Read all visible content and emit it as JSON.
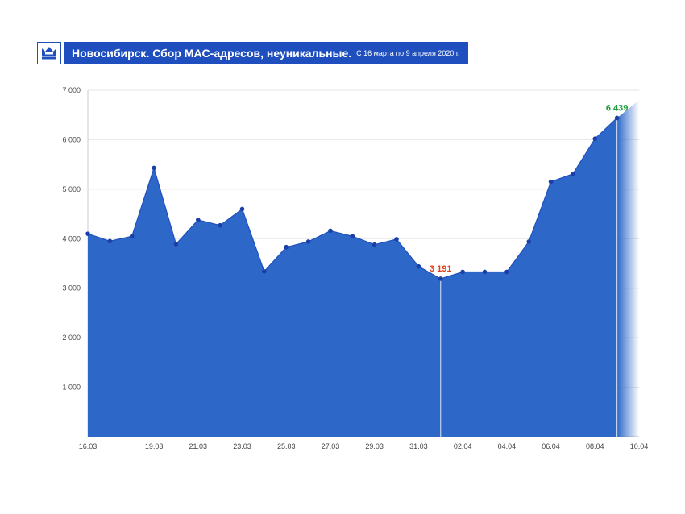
{
  "header": {
    "title": "Новосибирск. Сбор MAC-адресов, неуникальные.",
    "subtitle": "С 16 марта по 9 апреля 2020 г.",
    "logo_icon": "crown-icon"
  },
  "colors": {
    "fill": "#2d68c8",
    "line": "#1f4fbf",
    "point": "#1a3fa8",
    "grid": "#e6e6e6",
    "header": "#1f4fbf",
    "min_label": "#e0401a",
    "max_label": "#1f9a3a"
  },
  "chart_data": {
    "type": "area",
    "x": [
      "16.03",
      "17.03",
      "18.03",
      "19.03",
      "20.03",
      "21.03",
      "22.03",
      "23.03",
      "24.03",
      "25.03",
      "26.03",
      "27.03",
      "28.03",
      "29.03",
      "30.03",
      "31.03",
      "01.04",
      "02.04",
      "03.04",
      "04.04",
      "05.04",
      "06.04",
      "07.04",
      "08.04",
      "09.04",
      "10.04"
    ],
    "series": [
      {
        "values": [
          4100,
          3950,
          4050,
          5430,
          3890,
          4380,
          4270,
          4600,
          3340,
          3830,
          3940,
          4160,
          4050,
          3880,
          3990,
          3440,
          3191,
          3330,
          3330,
          3330,
          3940,
          5150,
          5310,
          6020,
          6439,
          6800
        ]
      }
    ],
    "x_tick_labels": [
      "16.03",
      "19.03",
      "21.03",
      "23.03",
      "25.03",
      "27.03",
      "29.03",
      "31.03",
      "02.04",
      "04.04",
      "06.04",
      "08.04",
      "10.04"
    ],
    "y_ticks": [
      "1 000",
      "2 000",
      "3 000",
      "4 000",
      "5 000",
      "6 000",
      "7 000"
    ],
    "ylim": [
      0,
      7000
    ],
    "grid": true,
    "annotations": [
      {
        "x": "01.04",
        "value": 3191,
        "text": "3 191",
        "kind": "min"
      },
      {
        "x": "09.04",
        "value": 6439,
        "text": "6 439",
        "kind": "max"
      }
    ],
    "last_point_faded": true
  }
}
